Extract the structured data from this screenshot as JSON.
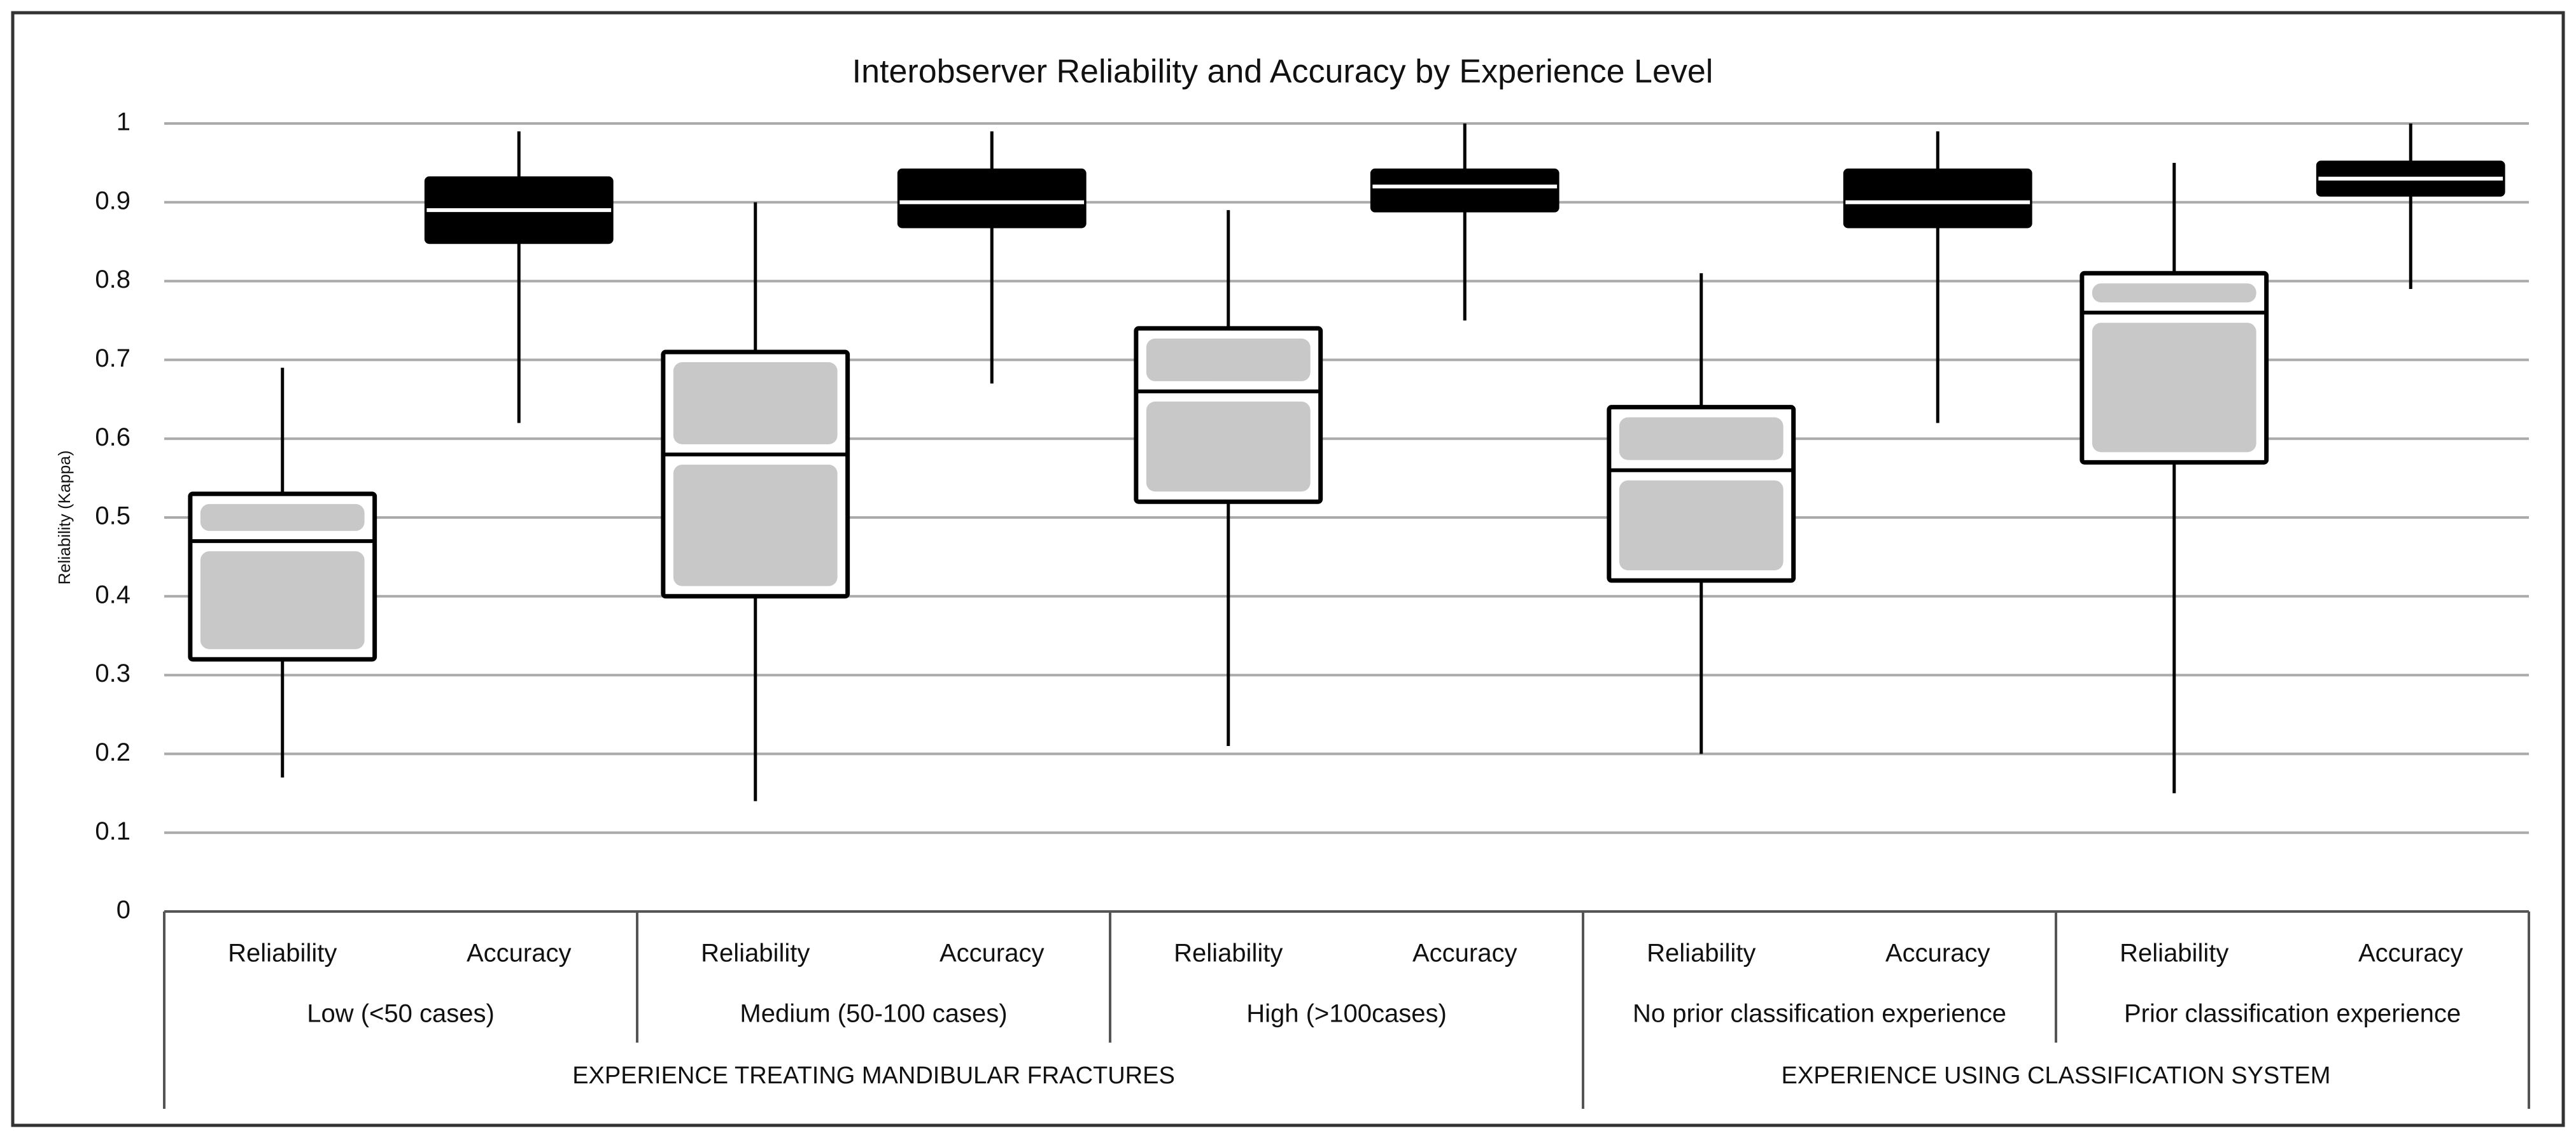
{
  "chart_data": {
    "type": "box",
    "title": "Interobserver Reliability and Accuracy by Experience Level",
    "y_label": "Reliability (Kappa)",
    "ylim": [
      0,
      1
    ],
    "yticks": [
      0,
      0.1,
      0.2,
      0.3,
      0.4,
      0.5,
      0.6,
      0.7,
      0.8,
      0.9,
      1
    ],
    "grid": true,
    "groups": [
      {
        "label": "EXPERIENCE TREATING MANDIBULAR FRACTURES",
        "categories": [
          "Low (<50 cases)",
          "Medium (50-100 cases)",
          "High (>100cases)"
        ]
      },
      {
        "label": "EXPERIENCE USING CLASSIFICATION SYSTEM",
        "categories": [
          "No prior classification experience",
          "Prior classification experience"
        ]
      }
    ],
    "series": [
      {
        "name": "Reliability",
        "color": "#c8c8c8",
        "values": [
          {
            "min": 0.17,
            "q1": 0.32,
            "median": 0.47,
            "q3": 0.53,
            "max": 0.69
          },
          {
            "min": 0.14,
            "q1": 0.4,
            "median": 0.58,
            "q3": 0.71,
            "max": 0.9
          },
          {
            "min": 0.21,
            "q1": 0.52,
            "median": 0.66,
            "q3": 0.74,
            "max": 0.89
          },
          {
            "min": 0.2,
            "q1": 0.42,
            "median": 0.56,
            "q3": 0.64,
            "max": 0.81
          },
          {
            "min": 0.15,
            "q1": 0.57,
            "median": 0.76,
            "q3": 0.81,
            "max": 0.95
          }
        ]
      },
      {
        "name": "Accuracy",
        "color": "#000000",
        "values": [
          {
            "min": 0.62,
            "q1": 0.85,
            "median": 0.89,
            "q3": 0.93,
            "max": 0.99
          },
          {
            "min": 0.67,
            "q1": 0.87,
            "median": 0.9,
            "q3": 0.94,
            "max": 0.99
          },
          {
            "min": 0.75,
            "q1": 0.89,
            "median": 0.92,
            "q3": 0.94,
            "max": 1.0
          },
          {
            "min": 0.62,
            "q1": 0.87,
            "median": 0.9,
            "q3": 0.94,
            "max": 0.99
          },
          {
            "min": 0.79,
            "q1": 0.91,
            "median": 0.93,
            "q3": 0.95,
            "max": 1.0
          }
        ]
      }
    ]
  }
}
